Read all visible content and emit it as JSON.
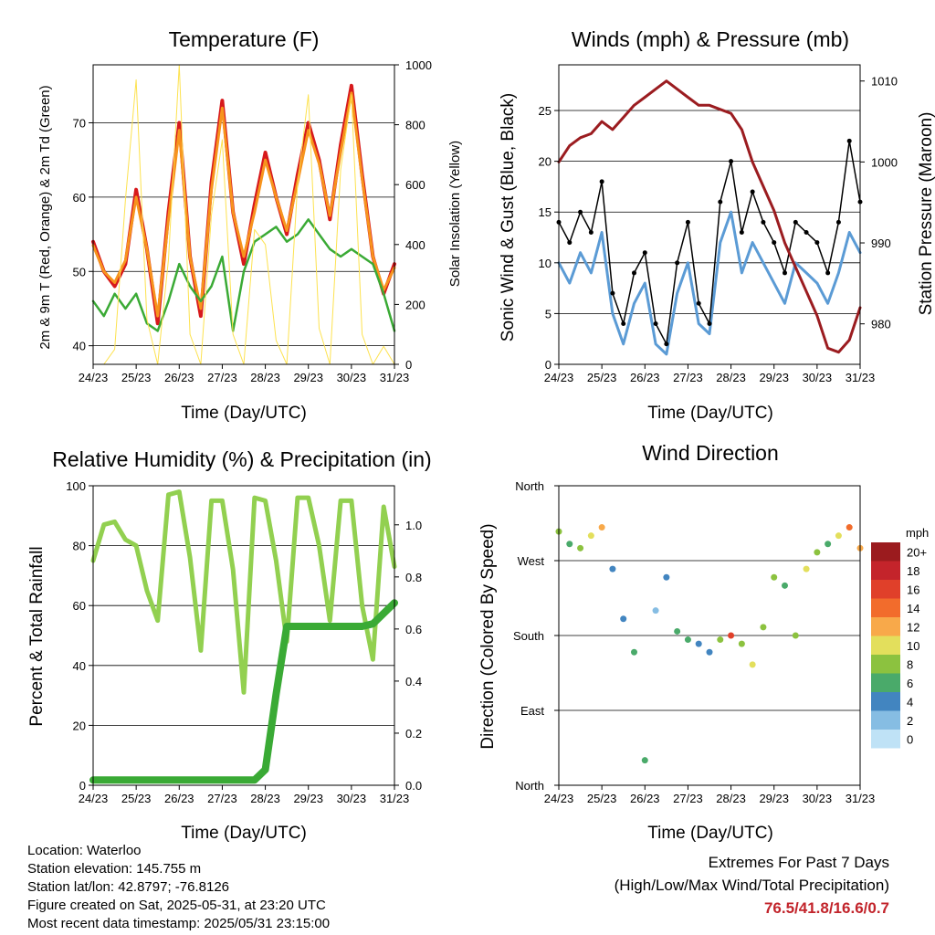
{
  "footer": {
    "location": "Location: Waterloo",
    "elevation": "Station elevation: 145.755 m",
    "latlon": "Station lat/lon: 42.8797; -76.8126",
    "created": "Figure created on Sat, 2025-05-31, at 23:20 UTC",
    "latest": "Most recent data timestamp: 2025/05/31 23:15:00",
    "extremes_title": "Extremes For Past 7 Days",
    "extremes_sub": "(High/Low/Max Wind/Total Precipitation)",
    "extremes_values": "76.5/41.8/16.6/0.7"
  },
  "x_ticks": [
    "24/23",
    "25/23",
    "26/23",
    "27/23",
    "28/23",
    "29/23",
    "30/23",
    "31/23"
  ],
  "chart_data": [
    {
      "type": "line",
      "title": "Temperature (F)",
      "xlabel": "Time (Day/UTC)",
      "ylabel": "2m & 9m T (Red, Orange) & 2m Td (Green)",
      "ylabel_right": "Solar Insolation (Yellow)",
      "ylim": [
        37.5,
        77.8
      ],
      "ylim_right": [
        0,
        1000
      ],
      "yticks": [
        40,
        50,
        60,
        70
      ],
      "yticks_right": [
        0,
        200,
        400,
        600,
        800,
        1000
      ],
      "grid": true,
      "x": [
        0,
        0.25,
        0.5,
        0.75,
        1.0,
        1.25,
        1.5,
        1.75,
        2.0,
        2.25,
        2.5,
        2.75,
        3.0,
        3.25,
        3.5,
        3.75,
        4.0,
        4.25,
        4.5,
        4.75,
        5.0,
        5.25,
        5.5,
        5.75,
        6.0,
        6.25,
        6.5,
        6.75,
        7.0
      ],
      "series": [
        {
          "color": "#d7191c",
          "values": [
            54,
            50,
            48,
            51,
            61,
            53,
            43,
            58,
            70,
            52,
            44,
            62,
            73,
            58,
            51,
            59,
            66,
            60,
            55,
            63,
            70,
            65,
            57,
            67,
            75,
            63,
            52,
            47,
            51
          ]
        },
        {
          "color": "#f7941d",
          "values": [
            53.5,
            50,
            48.5,
            51.5,
            60,
            53,
            44,
            57,
            69,
            52,
            45,
            61,
            72,
            58,
            52,
            58,
            65,
            60,
            55.5,
            62,
            69,
            64.5,
            57.5,
            66,
            74,
            62.5,
            52,
            47.5,
            50.5
          ]
        },
        {
          "color": "#3aaa35",
          "values": [
            46,
            44,
            47,
            45,
            47,
            43,
            42,
            46,
            51,
            48,
            46,
            48,
            52,
            42,
            50,
            54,
            55,
            56,
            54,
            55,
            57,
            55,
            53,
            52,
            53,
            52,
            51,
            47,
            42
          ]
        },
        {
          "color": "#fde24f",
          "axis": "right",
          "values": [
            0,
            0,
            50,
            550,
            950,
            150,
            0,
            350,
            1000,
            100,
            0,
            500,
            750,
            100,
            0,
            450,
            400,
            80,
            0,
            600,
            900,
            120,
            0,
            650,
            900,
            100,
            0,
            60,
            0
          ]
        }
      ]
    },
    {
      "type": "line",
      "title": "Winds (mph) & Pressure (mb)",
      "xlabel": "Time (Day/UTC)",
      "ylabel": "Sonic Wind & Gust (Blue, Black)",
      "ylabel_right": "Station Pressure (Maroon)",
      "ylim": [
        0,
        29.5
      ],
      "ylim_right": [
        975,
        1012
      ],
      "yticks": [
        0,
        5,
        10,
        15,
        20,
        25
      ],
      "yticks_right": [
        980,
        990,
        1000,
        1010
      ],
      "grid": true,
      "x": [
        0,
        0.25,
        0.5,
        0.75,
        1.0,
        1.25,
        1.5,
        1.75,
        2.0,
        2.25,
        2.5,
        2.75,
        3.0,
        3.25,
        3.5,
        3.75,
        4.0,
        4.25,
        4.5,
        4.75,
        5.0,
        5.25,
        5.5,
        5.75,
        6.0,
        6.25,
        6.5,
        6.75,
        7.0
      ],
      "series": [
        {
          "color": "#5b9bd5",
          "values": [
            10,
            8,
            11,
            9,
            13,
            5,
            2,
            6,
            8,
            2,
            1,
            7,
            10,
            4,
            3,
            12,
            15,
            9,
            12,
            10,
            8,
            6,
            10,
            9,
            8,
            6,
            9,
            13,
            11
          ]
        },
        {
          "color": "#000000",
          "values": [
            14,
            12,
            15,
            13,
            18,
            7,
            4,
            9,
            11,
            4,
            2,
            10,
            14,
            6,
            4,
            16,
            20,
            13,
            17,
            14,
            12,
            9,
            14,
            13,
            12,
            9,
            14,
            22,
            16
          ]
        },
        {
          "color": "#9b1c20",
          "axis": "right",
          "values": [
            1000,
            1002,
            1003,
            1003.5,
            1005,
            1004,
            1005.5,
            1007,
            1008,
            1009,
            1010,
            1009,
            1008,
            1007,
            1007,
            1006.5,
            1006,
            1004,
            1000,
            997,
            994,
            990,
            987,
            984,
            981,
            977,
            976.5,
            978,
            982
          ]
        }
      ]
    },
    {
      "type": "line",
      "title": "Relative Humidity (%) & Precipitation (in)",
      "xlabel": "Time (Day/UTC)",
      "ylabel": "Percent & Total Rainfall",
      "ylim": [
        0,
        100
      ],
      "ylim_right": [
        0,
        1.15
      ],
      "yticks": [
        0,
        20,
        40,
        60,
        80,
        100
      ],
      "yticks_right": [
        0.0,
        0.2,
        0.4,
        0.6,
        0.8,
        1.0
      ],
      "grid": true,
      "x": [
        0,
        0.25,
        0.5,
        0.75,
        1.0,
        1.25,
        1.5,
        1.75,
        2.0,
        2.25,
        2.5,
        2.75,
        3.0,
        3.25,
        3.5,
        3.75,
        4.0,
        4.25,
        4.5,
        4.75,
        5.0,
        5.25,
        5.5,
        5.75,
        6.0,
        6.25,
        6.5,
        6.75,
        7.0
      ],
      "series": [
        {
          "color": "#92d050",
          "values": [
            75,
            87,
            88,
            82,
            80,
            65,
            55,
            97,
            98,
            76,
            45,
            95,
            95,
            72,
            31,
            96,
            95,
            75,
            48,
            96,
            96,
            80,
            55,
            95,
            95,
            60,
            42,
            93,
            73
          ]
        },
        {
          "color": "#3aaa35",
          "axis": "right",
          "values": [
            0.02,
            0.02,
            0.02,
            0.02,
            0.02,
            0.02,
            0.02,
            0.02,
            0.02,
            0.02,
            0.02,
            0.02,
            0.02,
            0.02,
            0.02,
            0.02,
            0.06,
            0.35,
            0.61,
            0.61,
            0.61,
            0.61,
            0.61,
            0.61,
            0.61,
            0.61,
            0.62,
            0.66,
            0.7
          ]
        }
      ]
    },
    {
      "type": "scatter",
      "title": "Wind Direction",
      "xlabel": "Time (Day/UTC)",
      "ylabel": "Direction (Colored By Speed)",
      "ylim": [
        0,
        360
      ],
      "ytick_labels": [
        "North",
        "East",
        "South",
        "West",
        "North"
      ],
      "colorbar_title": "mph",
      "colorbar_labels": [
        "20+",
        "18",
        "16",
        "14",
        "12",
        "10",
        "8",
        "6",
        "4",
        "2",
        "0"
      ],
      "colorbar_colors": [
        "#9b1b1e",
        "#c4242b",
        "#e0402a",
        "#f26c2c",
        "#f8a94a",
        "#e3df5c",
        "#8cc23f",
        "#4aaa6a",
        "#4285c0",
        "#86bde3",
        "#bfe2f6"
      ],
      "x": [
        0,
        0.25,
        0.5,
        0.75,
        1.0,
        1.25,
        1.5,
        1.75,
        2.0,
        2.25,
        2.5,
        2.75,
        3.0,
        3.25,
        3.5,
        3.75,
        4.0,
        4.25,
        4.5,
        4.75,
        5.0,
        5.25,
        5.5,
        5.75,
        6.0,
        6.25,
        6.5,
        6.75,
        7.0
      ],
      "values": [
        305,
        290,
        285,
        300,
        310,
        260,
        200,
        160,
        30,
        210,
        250,
        185,
        175,
        170,
        160,
        175,
        180,
        170,
        145,
        190,
        250,
        240,
        180,
        260,
        280,
        290,
        300,
        310,
        285
      ],
      "speeds": [
        8,
        6,
        7,
        10,
        12,
        4,
        3,
        5,
        6,
        2,
        3,
        5,
        6,
        4,
        3,
        8,
        15,
        8,
        10,
        8,
        7,
        5,
        8,
        9,
        8,
        6,
        9,
        14,
        11
      ]
    }
  ]
}
